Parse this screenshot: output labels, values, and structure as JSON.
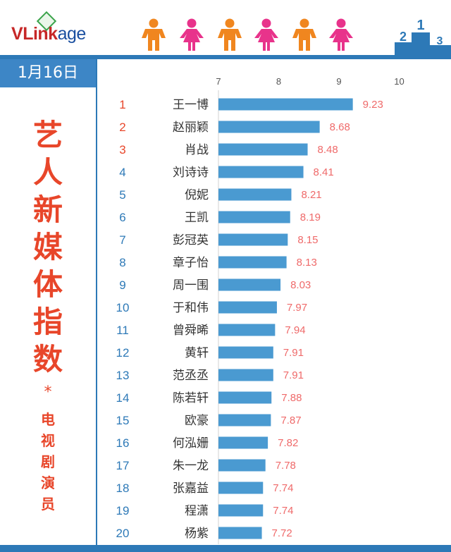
{
  "brand": {
    "logo_v": "V",
    "logo_link": "Link",
    "logo_age": "age"
  },
  "header": {
    "figures": [
      "male",
      "female",
      "male",
      "female",
      "male",
      "female"
    ],
    "podium_numbers": [
      "2",
      "1",
      "3"
    ]
  },
  "date": "1月16日",
  "title": {
    "chars": [
      "艺",
      "人",
      "新",
      "媒",
      "体",
      "指",
      "数"
    ],
    "separator": "*",
    "subtitle_chars": [
      "电",
      "视",
      "剧",
      "演",
      "员"
    ]
  },
  "colors": {
    "bar": "#4a9ad1",
    "value_label": "#ef6a6a",
    "rank_top": "#e8462a",
    "rank_rest": "#2d79b7",
    "accent": "#2d79b7"
  },
  "chart_data": {
    "type": "bar",
    "orientation": "horizontal",
    "xlim": [
      7,
      10
    ],
    "ticks": [
      7,
      8,
      9,
      10
    ],
    "grid": false,
    "ranks": [
      1,
      2,
      3,
      4,
      5,
      6,
      7,
      8,
      9,
      10,
      11,
      12,
      13,
      14,
      15,
      16,
      17,
      18,
      19,
      20
    ],
    "categories": [
      "王一博",
      "赵丽颖",
      "肖战",
      "刘诗诗",
      "倪妮",
      "王凯",
      "彭冠英",
      "章子怡",
      "周一围",
      "于和伟",
      "曾舜晞",
      "黄轩",
      "范丞丞",
      "陈若轩",
      "欧豪",
      "何泓姗",
      "朱一龙",
      "张嘉益",
      "程潇",
      "杨紫"
    ],
    "values": [
      9.23,
      8.68,
      8.48,
      8.41,
      8.21,
      8.19,
      8.15,
      8.13,
      8.03,
      7.97,
      7.94,
      7.91,
      7.91,
      7.88,
      7.87,
      7.82,
      7.78,
      7.74,
      7.74,
      7.72
    ]
  }
}
